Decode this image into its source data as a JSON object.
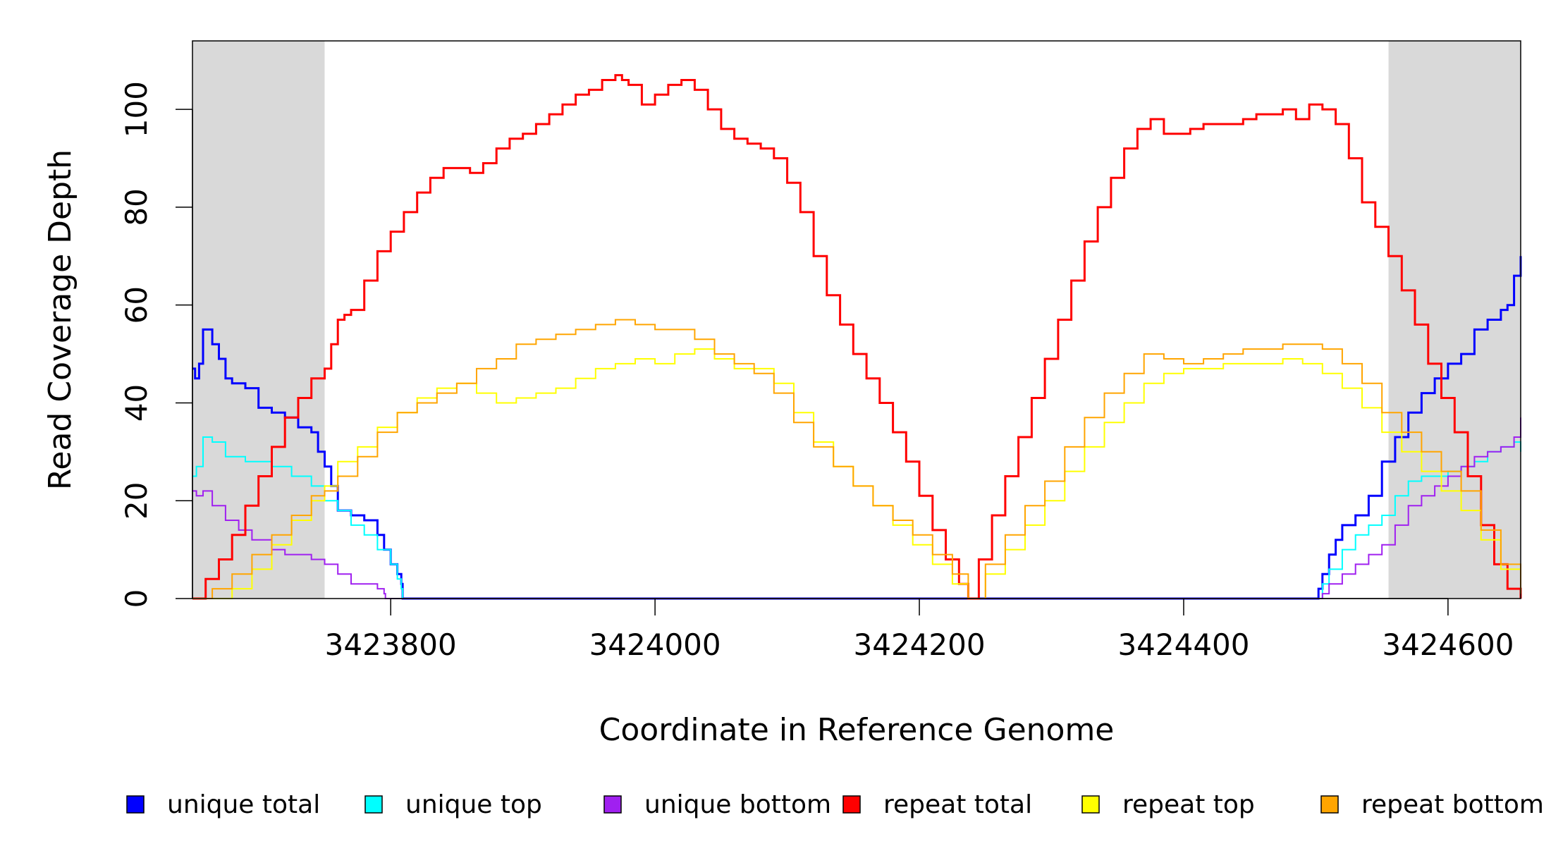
{
  "chart_data": {
    "type": "line",
    "title": "",
    "xlabel": "Coordinate in Reference Genome",
    "ylabel": "Read Coverage Depth",
    "xlim": [
      3423650,
      3424655
    ],
    "ylim": [
      0,
      114
    ],
    "grid": false,
    "legend_position": "bottom",
    "x_ticks": [
      3423800,
      3424000,
      3424200,
      3424400,
      3424600
    ],
    "x_tick_labels": [
      "3423800",
      "3424000",
      "3424200",
      "3424400",
      "3424600"
    ],
    "y_ticks": [
      0,
      20,
      40,
      60,
      80,
      100
    ],
    "y_tick_labels": [
      "0",
      "20",
      "40",
      "60",
      "80",
      "100"
    ],
    "shaded_regions": [
      [
        3423650,
        3423750
      ],
      [
        3424555,
        3424655
      ]
    ],
    "shade_color": "#d9d9d9",
    "series": [
      {
        "name": "unique total",
        "color": "#0000ff",
        "width": 3,
        "x": [
          3423650,
          3423652,
          3423655,
          3423658,
          3423662,
          3423665,
          3423670,
          3423675,
          3423680,
          3423690,
          3423700,
          3423710,
          3423720,
          3423730,
          3423740,
          3423745,
          3423750,
          3423755,
          3423760,
          3423770,
          3423780,
          3423790,
          3423795,
          3423800,
          3423805,
          3423808,
          3423809,
          3424500,
          3424502,
          3424505,
          3424510,
          3424515,
          3424520,
          3424530,
          3424540,
          3424550,
          3424560,
          3424570,
          3424580,
          3424590,
          3424600,
          3424610,
          3424620,
          3424630,
          3424640,
          3424645,
          3424650,
          3424655
        ],
        "y": [
          47,
          45,
          48,
          55,
          55,
          52,
          49,
          45,
          44,
          43,
          39,
          38,
          37,
          35,
          34,
          30,
          27,
          23,
          18,
          17,
          16,
          13,
          10,
          7,
          5,
          3,
          0,
          0,
          2,
          5,
          9,
          12,
          15,
          17,
          21,
          28,
          33,
          38,
          42,
          45,
          48,
          50,
          55,
          57,
          59,
          60,
          66,
          70
        ]
      },
      {
        "name": "unique top",
        "color": "#00ffff",
        "width": 2,
        "x": [
          3423650,
          3423653,
          3423658,
          3423665,
          3423675,
          3423690,
          3423710,
          3423725,
          3423740,
          3423750,
          3423760,
          3423770,
          3423780,
          3423790,
          3423800,
          3423805,
          3423808,
          3423809,
          3424500,
          3424505,
          3424510,
          3424520,
          3424530,
          3424540,
          3424550,
          3424560,
          3424570,
          3424580,
          3424590,
          3424600,
          3424610,
          3424620,
          3424630,
          3424640,
          3424650,
          3424655
        ],
        "y": [
          25,
          27,
          33,
          32,
          29,
          28,
          27,
          25,
          23,
          20,
          18,
          15,
          13,
          10,
          7,
          4,
          2,
          0,
          0,
          3,
          6,
          10,
          13,
          15,
          17,
          21,
          24,
          25,
          25,
          26,
          27,
          28,
          30,
          31,
          32,
          30
        ]
      },
      {
        "name": "unique bottom",
        "color": "#a020f0",
        "width": 2,
        "x": [
          3423650,
          3423653,
          3423658,
          3423665,
          3423675,
          3423685,
          3423695,
          3423710,
          3423720,
          3423730,
          3423740,
          3423750,
          3423760,
          3423770,
          3423780,
          3423790,
          3423795,
          3423796,
          3424500,
          3424505,
          3424510,
          3424520,
          3424530,
          3424540,
          3424550,
          3424560,
          3424570,
          3424580,
          3424590,
          3424600,
          3424610,
          3424620,
          3424630,
          3424640,
          3424650,
          3424655
        ],
        "y": [
          22,
          21,
          22,
          19,
          16,
          14,
          12,
          10,
          9,
          9,
          8,
          7,
          5,
          3,
          3,
          2,
          1,
          0,
          0,
          1,
          3,
          5,
          7,
          9,
          11,
          15,
          19,
          21,
          23,
          25,
          27,
          29,
          30,
          31,
          33,
          37
        ]
      },
      {
        "name": "repeat total",
        "color": "#ff0000",
        "width": 3,
        "x": [
          3423650,
          3423660,
          3423670,
          3423680,
          3423690,
          3423700,
          3423710,
          3423720,
          3423730,
          3423740,
          3423750,
          3423755,
          3423760,
          3423765,
          3423770,
          3423780,
          3423790,
          3423800,
          3423810,
          3423820,
          3423830,
          3423840,
          3423850,
          3423860,
          3423870,
          3423880,
          3423890,
          3423900,
          3423910,
          3423920,
          3423930,
          3423940,
          3423950,
          3423960,
          3423970,
          3423975,
          3423980,
          3423990,
          3424000,
          3424010,
          3424020,
          3424030,
          3424040,
          3424050,
          3424060,
          3424070,
          3424080,
          3424090,
          3424100,
          3424110,
          3424120,
          3424130,
          3424140,
          3424150,
          3424160,
          3424170,
          3424180,
          3424190,
          3424200,
          3424210,
          3424220,
          3424230,
          3424237,
          3424245,
          3424255,
          3424265,
          3424275,
          3424285,
          3424295,
          3424305,
          3424315,
          3424325,
          3424335,
          3424345,
          3424355,
          3424365,
          3424375,
          3424385,
          3424395,
          3424405,
          3424415,
          3424425,
          3424435,
          3424445,
          3424455,
          3424465,
          3424475,
          3424485,
          3424495,
          3424505,
          3424515,
          3424525,
          3424535,
          3424545,
          3424555,
          3424565,
          3424575,
          3424585,
          3424595,
          3424605,
          3424615,
          3424625,
          3424635,
          3424645,
          3424655
        ],
        "y": [
          0,
          4,
          8,
          13,
          19,
          25,
          31,
          37,
          41,
          45,
          47,
          52,
          57,
          58,
          59,
          65,
          71,
          75,
          79,
          83,
          86,
          88,
          88,
          87,
          89,
          92,
          94,
          95,
          97,
          99,
          101,
          103,
          104,
          106,
          107,
          106,
          105,
          101,
          103,
          105,
          106,
          104,
          100,
          96,
          94,
          93,
          92,
          90,
          85,
          79,
          70,
          62,
          56,
          50,
          45,
          40,
          34,
          28,
          21,
          14,
          8,
          3,
          0,
          8,
          17,
          25,
          33,
          41,
          49,
          57,
          65,
          73,
          80,
          86,
          92,
          96,
          98,
          95,
          95,
          96,
          97,
          97,
          97,
          98,
          99,
          99,
          100,
          98,
          101,
          100,
          97,
          90,
          81,
          76,
          70,
          63,
          56,
          48,
          41,
          34,
          25,
          15,
          7,
          2,
          0
        ]
      },
      {
        "name": "repeat top",
        "color": "#ffff00",
        "width": 2,
        "x": [
          3423650,
          3423665,
          3423680,
          3423695,
          3423710,
          3423725,
          3423740,
          3423750,
          3423760,
          3423775,
          3423790,
          3423805,
          3423820,
          3423835,
          3423850,
          3423865,
          3423880,
          3423895,
          3423910,
          3423925,
          3423940,
          3423955,
          3423970,
          3423985,
          3424000,
          3424015,
          3424030,
          3424045,
          3424060,
          3424075,
          3424090,
          3424105,
          3424120,
          3424135,
          3424150,
          3424165,
          3424180,
          3424195,
          3424210,
          3424225,
          3424237,
          3424250,
          3424265,
          3424280,
          3424295,
          3424310,
          3424325,
          3424340,
          3424355,
          3424370,
          3424385,
          3424400,
          3424415,
          3424430,
          3424445,
          3424460,
          3424475,
          3424490,
          3424505,
          3424520,
          3424535,
          3424550,
          3424565,
          3424580,
          3424595,
          3424610,
          3424625,
          3424640,
          3424655
        ],
        "y": [
          0,
          0,
          2,
          6,
          11,
          16,
          20,
          23,
          28,
          31,
          35,
          38,
          41,
          43,
          44,
          42,
          40,
          41,
          42,
          43,
          45,
          47,
          48,
          49,
          48,
          50,
          51,
          49,
          47,
          47,
          44,
          38,
          32,
          27,
          23,
          19,
          15,
          11,
          7,
          3,
          0,
          5,
          10,
          15,
          20,
          26,
          31,
          36,
          40,
          44,
          46,
          47,
          47,
          48,
          48,
          48,
          49,
          48,
          46,
          43,
          39,
          34,
          30,
          26,
          22,
          18,
          12,
          6,
          1
        ]
      },
      {
        "name": "repeat bottom",
        "color": "#ffa500",
        "width": 2,
        "x": [
          3423650,
          3423665,
          3423680,
          3423695,
          3423710,
          3423725,
          3423740,
          3423750,
          3423760,
          3423775,
          3423790,
          3423805,
          3423820,
          3423835,
          3423850,
          3423865,
          3423880,
          3423895,
          3423910,
          3423925,
          3423940,
          3423955,
          3423970,
          3423985,
          3424000,
          3424015,
          3424030,
          3424045,
          3424060,
          3424075,
          3424090,
          3424105,
          3424120,
          3424135,
          3424150,
          3424165,
          3424180,
          3424195,
          3424210,
          3424225,
          3424237,
          3424250,
          3424265,
          3424280,
          3424295,
          3424310,
          3424325,
          3424340,
          3424355,
          3424370,
          3424385,
          3424400,
          3424415,
          3424430,
          3424445,
          3424460,
          3424475,
          3424490,
          3424505,
          3424520,
          3424535,
          3424550,
          3424565,
          3424580,
          3424595,
          3424610,
          3424625,
          3424640,
          3424655
        ],
        "y": [
          0,
          2,
          5,
          9,
          13,
          17,
          21,
          22,
          25,
          29,
          34,
          38,
          40,
          42,
          44,
          47,
          49,
          52,
          53,
          54,
          55,
          56,
          57,
          56,
          55,
          55,
          53,
          50,
          48,
          46,
          42,
          36,
          31,
          27,
          23,
          19,
          16,
          13,
          9,
          5,
          0,
          7,
          13,
          19,
          24,
          31,
          37,
          42,
          46,
          50,
          49,
          48,
          49,
          50,
          51,
          51,
          52,
          52,
          51,
          48,
          44,
          38,
          34,
          30,
          26,
          22,
          14,
          7,
          1
        ]
      }
    ]
  }
}
